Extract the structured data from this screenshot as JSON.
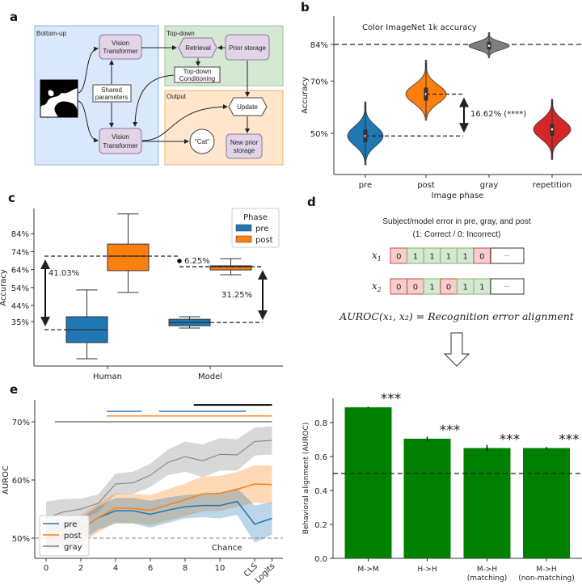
{
  "panel_labels": {
    "a": "a",
    "b": "b",
    "c": "c",
    "d": "d",
    "e": "e"
  },
  "diagram": {
    "regions": {
      "bottom_up": "Bottom-up",
      "top_down": "Top-down",
      "output": "Output"
    },
    "vit_top": [
      "Vision",
      "Transformer"
    ],
    "vit_bottom": [
      "Vision",
      "Transformer"
    ],
    "shared": [
      "Shared",
      "parameters"
    ],
    "retrieval": "Retrieval",
    "prior_storage": "Prior storage",
    "conditioning": [
      "Top-down",
      "Conditioning"
    ],
    "update": "Update",
    "cat": "\"Cat\"",
    "new_prior": [
      "New prior",
      "storage"
    ],
    "colors": {
      "bottom_up": "#dae8fc",
      "top_down": "#d5e8d4",
      "output": "#ffe6cc",
      "node": "#e1d5e7"
    }
  },
  "error_diagram": {
    "title": "Subject/model error in pre, gray, and post",
    "subtitle": "(1: Correct / 0: Incorrect)",
    "rows": [
      {
        "label": "x",
        "sub": "1",
        "values": [
          "0",
          "1",
          "1",
          "1",
          "1",
          "0"
        ],
        "ellipsis": "···"
      },
      {
        "label": "x",
        "sub": "2",
        "values": [
          "0",
          "0",
          "1",
          "0",
          "1",
          "1"
        ],
        "ellipsis": "···"
      }
    ],
    "formula": "AUROC(x₁, x₂) = Recognition error alignment",
    "colors": {
      "correct": "#d5e8d4",
      "incorrect": "#f8cecc"
    }
  },
  "chart_data": [
    {
      "panel": "b",
      "type": "violin",
      "title": "Color ImageNet 1k accuracy",
      "xlabel": "Image phase",
      "ylabel": "Accuracy",
      "categories": [
        "pre",
        "post",
        "gray",
        "repetition"
      ],
      "colors": [
        "#1f77b4",
        "#ff7f0e",
        "#7f7f7f",
        "#d62728"
      ],
      "yticks": [
        50,
        70,
        84
      ],
      "ytick_labels": [
        "50%",
        "70%",
        "84%"
      ],
      "ylim": [
        36,
        91
      ],
      "violins": [
        {
          "median": 49,
          "q1": 46.5,
          "q3": 51.5,
          "min": 38,
          "max": 62
        },
        {
          "median": 65,
          "q1": 62.5,
          "q3": 67.5,
          "min": 55,
          "max": 78
        },
        {
          "median": 83.5,
          "q1": 82,
          "q3": 85,
          "min": 79,
          "max": 88.5
        },
        {
          "median": 51.5,
          "q1": 49,
          "q3": 53.5,
          "min": 40,
          "max": 63
        }
      ],
      "reference_line": 84,
      "annotation": "16.62% (****)"
    },
    {
      "panel": "c",
      "type": "box",
      "ylabel": "Accuracy",
      "categories": [
        "Human",
        "Model"
      ],
      "legend_title": "Phase",
      "legend_placement": "top-right",
      "series": [
        {
          "name": "pre",
          "color": "#1f77b4",
          "boxes": [
            {
              "whislo": 14.3,
              "q1": 23.3,
              "med": 30.5,
              "q3": 37.7,
              "whishi": 52.6
            },
            {
              "whislo": 31.4,
              "q1": 32.7,
              "med": 34.5,
              "q3": 36.3,
              "whishi": 37.7
            }
          ]
        },
        {
          "name": "post",
          "color": "#ff7f0e",
          "boxes": [
            {
              "whislo": 51.2,
              "q1": 63.4,
              "med": 71.5,
              "q3": 78.2,
              "whishi": 95
            },
            {
              "whislo": 61.1,
              "q1": 63.8,
              "med": 65.6,
              "q3": 66.1,
              "whishi": 70.1
            }
          ]
        }
      ],
      "yticks": [
        35,
        44,
        54,
        64,
        74,
        84
      ],
      "ytick_labels": [
        "35%",
        "44%",
        "54%",
        "64%",
        "74%",
        "84%"
      ],
      "annotations": [
        "41.03%",
        "6.25%",
        "31.25%"
      ]
    },
    {
      "panel": "e",
      "type": "line",
      "ylabel": "AUROC",
      "x": [
        0,
        1,
        2,
        3,
        4,
        5,
        6,
        7,
        8,
        9,
        10,
        11,
        12,
        13
      ],
      "xticks": [
        0,
        2,
        4,
        6,
        8,
        10,
        12,
        13
      ],
      "xtick_labels": [
        "0",
        "2",
        "4",
        "6",
        "8",
        "10",
        "CLS",
        "Logits"
      ],
      "yticks": [
        50,
        60,
        70
      ],
      "ytick_labels": [
        "50%",
        "60%",
        "70%"
      ],
      "ylim": [
        46,
        74
      ],
      "legend_placement": "bottom-left",
      "series": [
        {
          "name": "pre",
          "color": "#1f77b4",
          "values": [
            50,
            50.5,
            51.5,
            53.5,
            54.7,
            54.7,
            54.1,
            54.8,
            55.4,
            55.6,
            55.6,
            56.3,
            52.4,
            53.4
          ],
          "ci": [
            2,
            2,
            2,
            2,
            2.2,
            2.2,
            2.3,
            2.2,
            2,
            2,
            2.2,
            2.3,
            3.2,
            2.8
          ]
        },
        {
          "name": "post",
          "color": "#ff7f0e",
          "values": [
            50,
            50.5,
            51.5,
            53.5,
            55.2,
            55.1,
            54.8,
            55.7,
            56.6,
            57.6,
            57.7,
            58.4,
            59.3,
            59.2
          ],
          "ci": [
            2.5,
            2.5,
            2.5,
            2.5,
            2.5,
            2.5,
            2.6,
            2.7,
            2.8,
            3,
            3,
            3,
            3.2,
            3.3
          ]
        },
        {
          "name": "gray",
          "color": "#7f7f7f",
          "values": [
            53.5,
            54.5,
            55,
            56,
            59.3,
            59.5,
            60.8,
            63,
            64,
            63.3,
            64.4,
            64.3,
            66.6,
            66.8
          ],
          "ci": [
            2.8,
            2.2,
            1.8,
            1.5,
            1.8,
            1.9,
            2,
            2.2,
            2.6,
            2.8,
            2.8,
            2.7,
            2.4,
            2.4
          ]
        }
      ],
      "chance_level": 50,
      "chance_label": "Chance",
      "significance_bars": [
        {
          "color": "#7f7f7f",
          "y": 70,
          "spans": [
            [
              0.5,
              13
            ]
          ]
        },
        {
          "color": "#ff7f0e",
          "y": 71,
          "spans": [
            [
              3.5,
              13
            ]
          ]
        },
        {
          "color": "#1f77b4",
          "y": 71.8,
          "spans": [
            [
              3.5,
              5.5
            ],
            [
              6.5,
              11.5
            ]
          ]
        },
        {
          "color": "#000000",
          "y": 72.9,
          "spans": [
            [
              8.5,
              13
            ]
          ]
        }
      ]
    },
    {
      "panel": "d",
      "type": "bar",
      "ylabel": "Behavioral alignment (AUROC)",
      "categories": [
        [
          "M->M"
        ],
        [
          "H->H"
        ],
        [
          "M->H",
          "(matching)"
        ],
        [
          "M->H",
          "(non-matching)"
        ]
      ],
      "values": [
        0.89,
        0.705,
        0.65,
        0.65
      ],
      "errors": [
        0.003,
        0.012,
        0.018,
        0.006
      ],
      "significance": [
        "***",
        "***",
        "***",
        "***"
      ],
      "color": "#008000",
      "yticks": [
        0.0,
        0.2,
        0.4,
        0.6,
        0.8
      ],
      "ytick_labels": [
        "0.0",
        "0.2",
        "0.4",
        "0.6",
        "0.8"
      ],
      "ylim": [
        0,
        0.95
      ],
      "reference_line": 0.5
    }
  ]
}
